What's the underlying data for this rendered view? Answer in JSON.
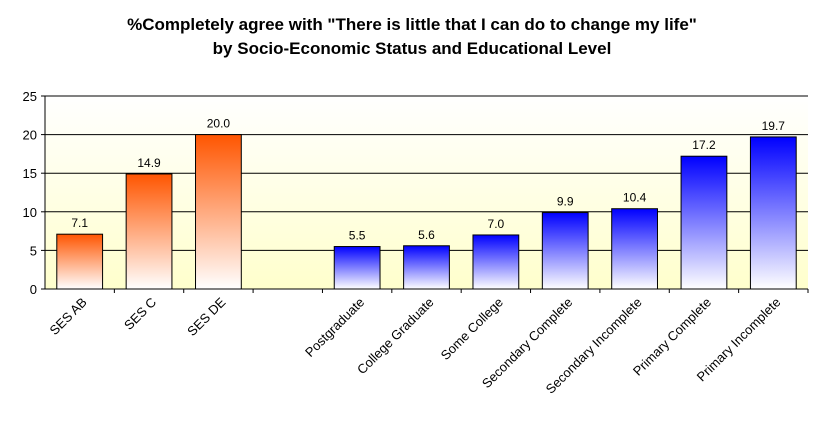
{
  "chart_data": {
    "type": "bar",
    "title_line1": "%Completely agree with \"There is little that I can do to change my life\"",
    "title_line2": "by Socio-Economic Status and Educational Level",
    "xlabel": "",
    "ylabel": "",
    "ylim": [
      0,
      25
    ],
    "yticks": [
      0,
      5,
      10,
      15,
      20,
      25
    ],
    "grid": true,
    "categories": [
      "SES AB",
      "SES C",
      "SES DE",
      "",
      "Postgraduate",
      "College Graduate",
      "Some College",
      "Secondary Complete",
      "Secondary Incomplete",
      "Primary Complete",
      "Primary Incomplete"
    ],
    "values": [
      7.1,
      14.9,
      20.0,
      null,
      5.5,
      5.6,
      7.0,
      9.9,
      10.4,
      17.2,
      19.7
    ],
    "value_labels": [
      "7.1",
      "14.9",
      "20.0",
      "",
      "5.5",
      "5.6",
      "7.0",
      "9.9",
      "10.4",
      "17.2",
      "19.7"
    ],
    "groups": [
      "ses",
      "ses",
      "ses",
      "none",
      "edu",
      "edu",
      "edu",
      "edu",
      "edu",
      "edu",
      "edu"
    ],
    "colors": {
      "ses_top": "#ff5500",
      "ses_bottom": "#ffffff",
      "edu_top": "#0000ff",
      "edu_bottom": "#ffffff",
      "plot_bg_top": "#ffffff",
      "plot_bg_bottom": "#ffffcc",
      "gridline": "#000000"
    }
  }
}
